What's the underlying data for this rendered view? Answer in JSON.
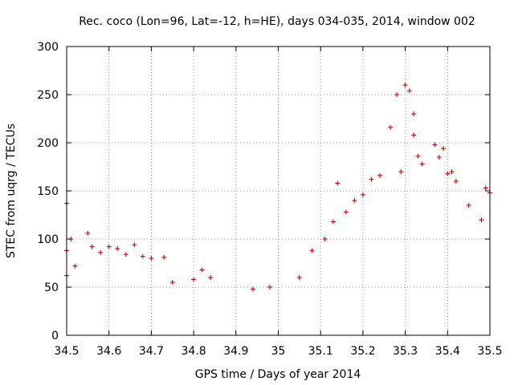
{
  "chart_data": {
    "type": "scatter",
    "title": "Rec. coco (Lon=96, Lat=-12, h=HE), days 034-035, 2014, window 002",
    "xlabel": "GPS time / Days of year 2014",
    "ylabel": "STEC from uqrg / TECUs",
    "xlim": [
      34.5,
      35.5
    ],
    "ylim": [
      0,
      300
    ],
    "xticks": [
      "34.5",
      "34.6",
      "34.7",
      "34.8",
      "34.9",
      "35",
      "35.1",
      "35.2",
      "35.3",
      "35.4",
      "35.5"
    ],
    "yticks": [
      "0",
      "50",
      "100",
      "150",
      "200",
      "250",
      "300"
    ],
    "grid": true,
    "marker": "+",
    "color": "#cc0000",
    "series": [
      {
        "points": [
          [
            34.5,
            137
          ],
          [
            34.5,
            88
          ],
          [
            34.5,
            62
          ],
          [
            34.51,
            100
          ],
          [
            34.52,
            72
          ],
          [
            34.55,
            106
          ],
          [
            34.56,
            92
          ],
          [
            34.58,
            86
          ],
          [
            34.6,
            92
          ],
          [
            34.62,
            90
          ],
          [
            34.64,
            84
          ],
          [
            34.66,
            94
          ],
          [
            34.68,
            82
          ],
          [
            34.7,
            80
          ],
          [
            34.73,
            81
          ],
          [
            34.75,
            55
          ],
          [
            34.8,
            58
          ],
          [
            34.82,
            68
          ],
          [
            34.84,
            60
          ],
          [
            34.94,
            48
          ],
          [
            34.98,
            50
          ],
          [
            35.05,
            60
          ],
          [
            35.08,
            88
          ],
          [
            35.11,
            100
          ],
          [
            35.13,
            118
          ],
          [
            35.14,
            158
          ],
          [
            35.16,
            128
          ],
          [
            35.18,
            140
          ],
          [
            35.2,
            146
          ],
          [
            35.22,
            162
          ],
          [
            35.24,
            166
          ],
          [
            35.265,
            216
          ],
          [
            35.28,
            250
          ],
          [
            35.29,
            170
          ],
          [
            35.3,
            260
          ],
          [
            35.31,
            254
          ],
          [
            35.32,
            230
          ],
          [
            35.32,
            208
          ],
          [
            35.33,
            186
          ],
          [
            35.34,
            178
          ],
          [
            35.37,
            198
          ],
          [
            35.38,
            185
          ],
          [
            35.39,
            194
          ],
          [
            35.4,
            168
          ],
          [
            35.41,
            170
          ],
          [
            35.42,
            160
          ],
          [
            35.45,
            135
          ],
          [
            35.48,
            120
          ],
          [
            35.49,
            153
          ],
          [
            35.5,
            148
          ]
        ]
      }
    ]
  }
}
